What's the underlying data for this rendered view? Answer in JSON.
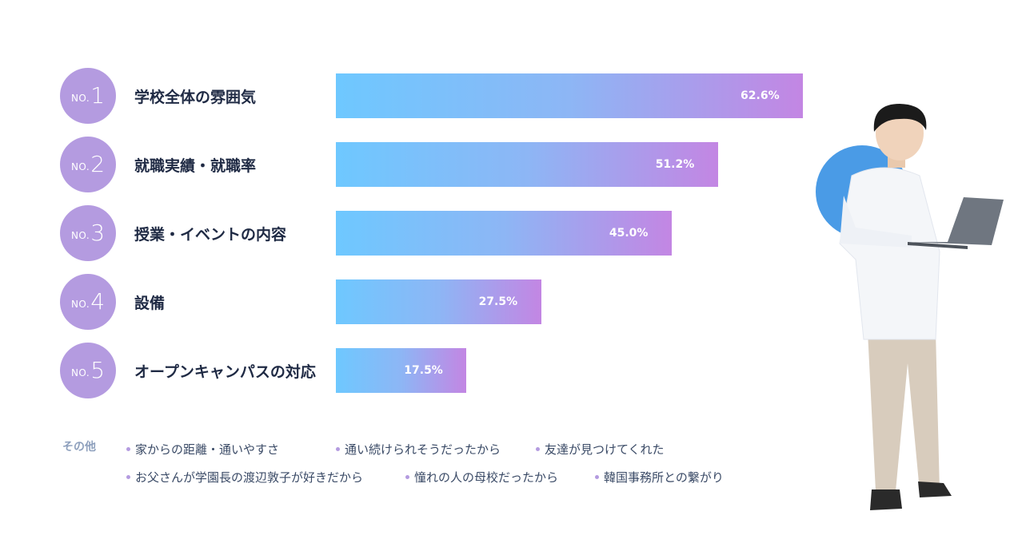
{
  "chart_data": {
    "type": "bar",
    "orientation": "horizontal",
    "unit": "%",
    "xlim": [
      0,
      100
    ],
    "grid": false,
    "rank_prefix": "NO.",
    "categories": [
      "学校全体の雰囲気",
      "就職実績・就職率",
      "授業・イベントの内容",
      "設備",
      "オープンキャンパスの対応"
    ],
    "ranks": [
      "1",
      "2",
      "3",
      "4",
      "5"
    ],
    "values": [
      62.6,
      51.2,
      45.0,
      27.5,
      17.5
    ],
    "value_labels": [
      "62.6%",
      "51.2%",
      "45.0%",
      "27.5%",
      "17.5%"
    ]
  },
  "others": {
    "label": "その他",
    "items": [
      "家からの距離・通いやすさ",
      "通い続けられそうだったから",
      "友達が見つけてくれた",
      "お父さんが学園長の渡辺敦子が好きだから",
      "憧れの人の母校だったから",
      "韓国事務所との繋がり"
    ]
  },
  "colors": {
    "badge": "#b49be0",
    "bar_start": "#6ec8ff",
    "bar_end": "#c386e3",
    "label_text": "#1f2a44",
    "accent_circle": "#4a9be6"
  }
}
